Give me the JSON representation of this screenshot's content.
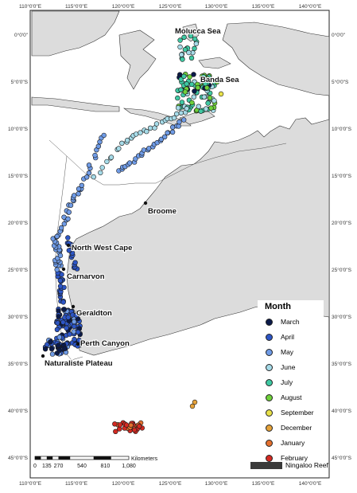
{
  "map": {
    "lon_ticks": [
      "110°0'0\"E",
      "115°0'0\"E",
      "120°0'0\"E",
      "125°0'0\"E",
      "130°0'0\"E",
      "135°0'0\"E",
      "140°0'0\"E"
    ],
    "lat_ticks": [
      "0°0'0\"",
      "5°0'0\"S",
      "10°0'0\"S",
      "15°0'0\"S",
      "20°0'0\"S",
      "25°0'0\"S",
      "30°0'0\"S",
      "35°0'0\"S",
      "40°0'0\"S",
      "45°0'0\"S"
    ],
    "lat_ticks_right": [
      "0°0'0\"",
      "5°0'0\"S",
      "10°0'0\"S",
      "15°0'0\"S",
      "20°0'0\"S",
      "25°0'0\"S",
      "30°0'0\"S",
      "35°0'0\"S",
      "40°0'0\"S",
      "45°0'0\"S"
    ],
    "places": {
      "molucca_sea": "Molucca Sea",
      "banda_sea": "Banda Sea",
      "broome": "Broome",
      "north_west_cape": "North West Cape",
      "carnarvon": "Carnarvon",
      "geraldton": "Geraldton",
      "perth_canyon": "Perth Canyon",
      "naturaliste_plateau": "Naturaliste Plateau"
    },
    "scale_bar": {
      "labels": [
        "0",
        "135",
        "270",
        "540",
        "810",
        "1,080"
      ],
      "unit": "Kilometers"
    },
    "colors": {
      "land": "#dcdcdc",
      "coast": "#333333",
      "bathymetry": "#555555"
    }
  },
  "legend": {
    "title": "Month",
    "items": [
      {
        "label": "March",
        "color": "#0b1a4a"
      },
      {
        "label": "April",
        "color": "#2d56c6"
      },
      {
        "label": "May",
        "color": "#6f9be6"
      },
      {
        "label": "June",
        "color": "#a6dbe8"
      },
      {
        "label": "July",
        "color": "#3fc9a3"
      },
      {
        "label": "August",
        "color": "#6fd13a"
      },
      {
        "label": "September",
        "color": "#e8e14a"
      },
      {
        "label": "December",
        "color": "#e5a23a"
      },
      {
        "label": "January",
        "color": "#e4702e"
      },
      {
        "label": "February",
        "color": "#d42a22"
      }
    ],
    "ningaloo_label": "Ningaloo Reef"
  }
}
